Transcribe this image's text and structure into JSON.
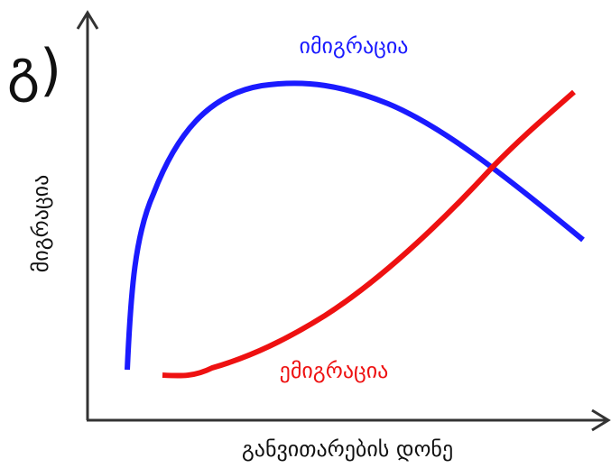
{
  "header": {
    "label": "გ)"
  },
  "curves": [
    {
      "label": "იმიგრაცია"
    },
    {
      "label": "ემიგრაცია"
    }
  ],
  "axes": {
    "y_label": "მიგრაცია",
    "x_label": "განვითარების დონე"
  }
}
